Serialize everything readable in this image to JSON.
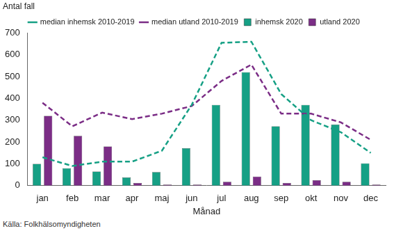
{
  "chart_data": {
    "type": "bar",
    "ylabel": "Antal fall",
    "xlabel": "Månad",
    "source": "Källa: Folkhälsomyndigheten",
    "categories": [
      "jan",
      "feb",
      "mar",
      "apr",
      "maj",
      "jun",
      "jul",
      "aug",
      "sep",
      "okt",
      "nov",
      "dec"
    ],
    "series": [
      {
        "name": "inhemsk 2020",
        "type": "bar",
        "color": "#16a085",
        "values": [
          100,
          80,
          65,
          38,
          62,
          172,
          370,
          520,
          272,
          370,
          280,
          102
        ]
      },
      {
        "name": "utland 2020",
        "type": "bar",
        "color": "#7b2d86",
        "values": [
          320,
          228,
          180,
          12,
          5,
          5,
          18,
          42,
          12,
          25,
          18,
          5
        ]
      },
      {
        "name": "median inhemsk 2010-2019",
        "type": "line",
        "line_style": "dashed",
        "color": "#16a085",
        "values": [
          130,
          90,
          110,
          110,
          160,
          370,
          655,
          660,
          420,
          300,
          245,
          150
        ]
      },
      {
        "name": "median utland 2010-2019",
        "type": "line",
        "line_style": "dashed",
        "color": "#7b2d86",
        "values": [
          380,
          272,
          335,
          305,
          330,
          365,
          480,
          555,
          330,
          330,
          290,
          210
        ]
      }
    ],
    "ylim": [
      0,
      700
    ],
    "yticks": [
      0,
      100,
      200,
      300,
      400,
      500,
      600,
      700
    ],
    "grid": false,
    "legend": "top"
  }
}
